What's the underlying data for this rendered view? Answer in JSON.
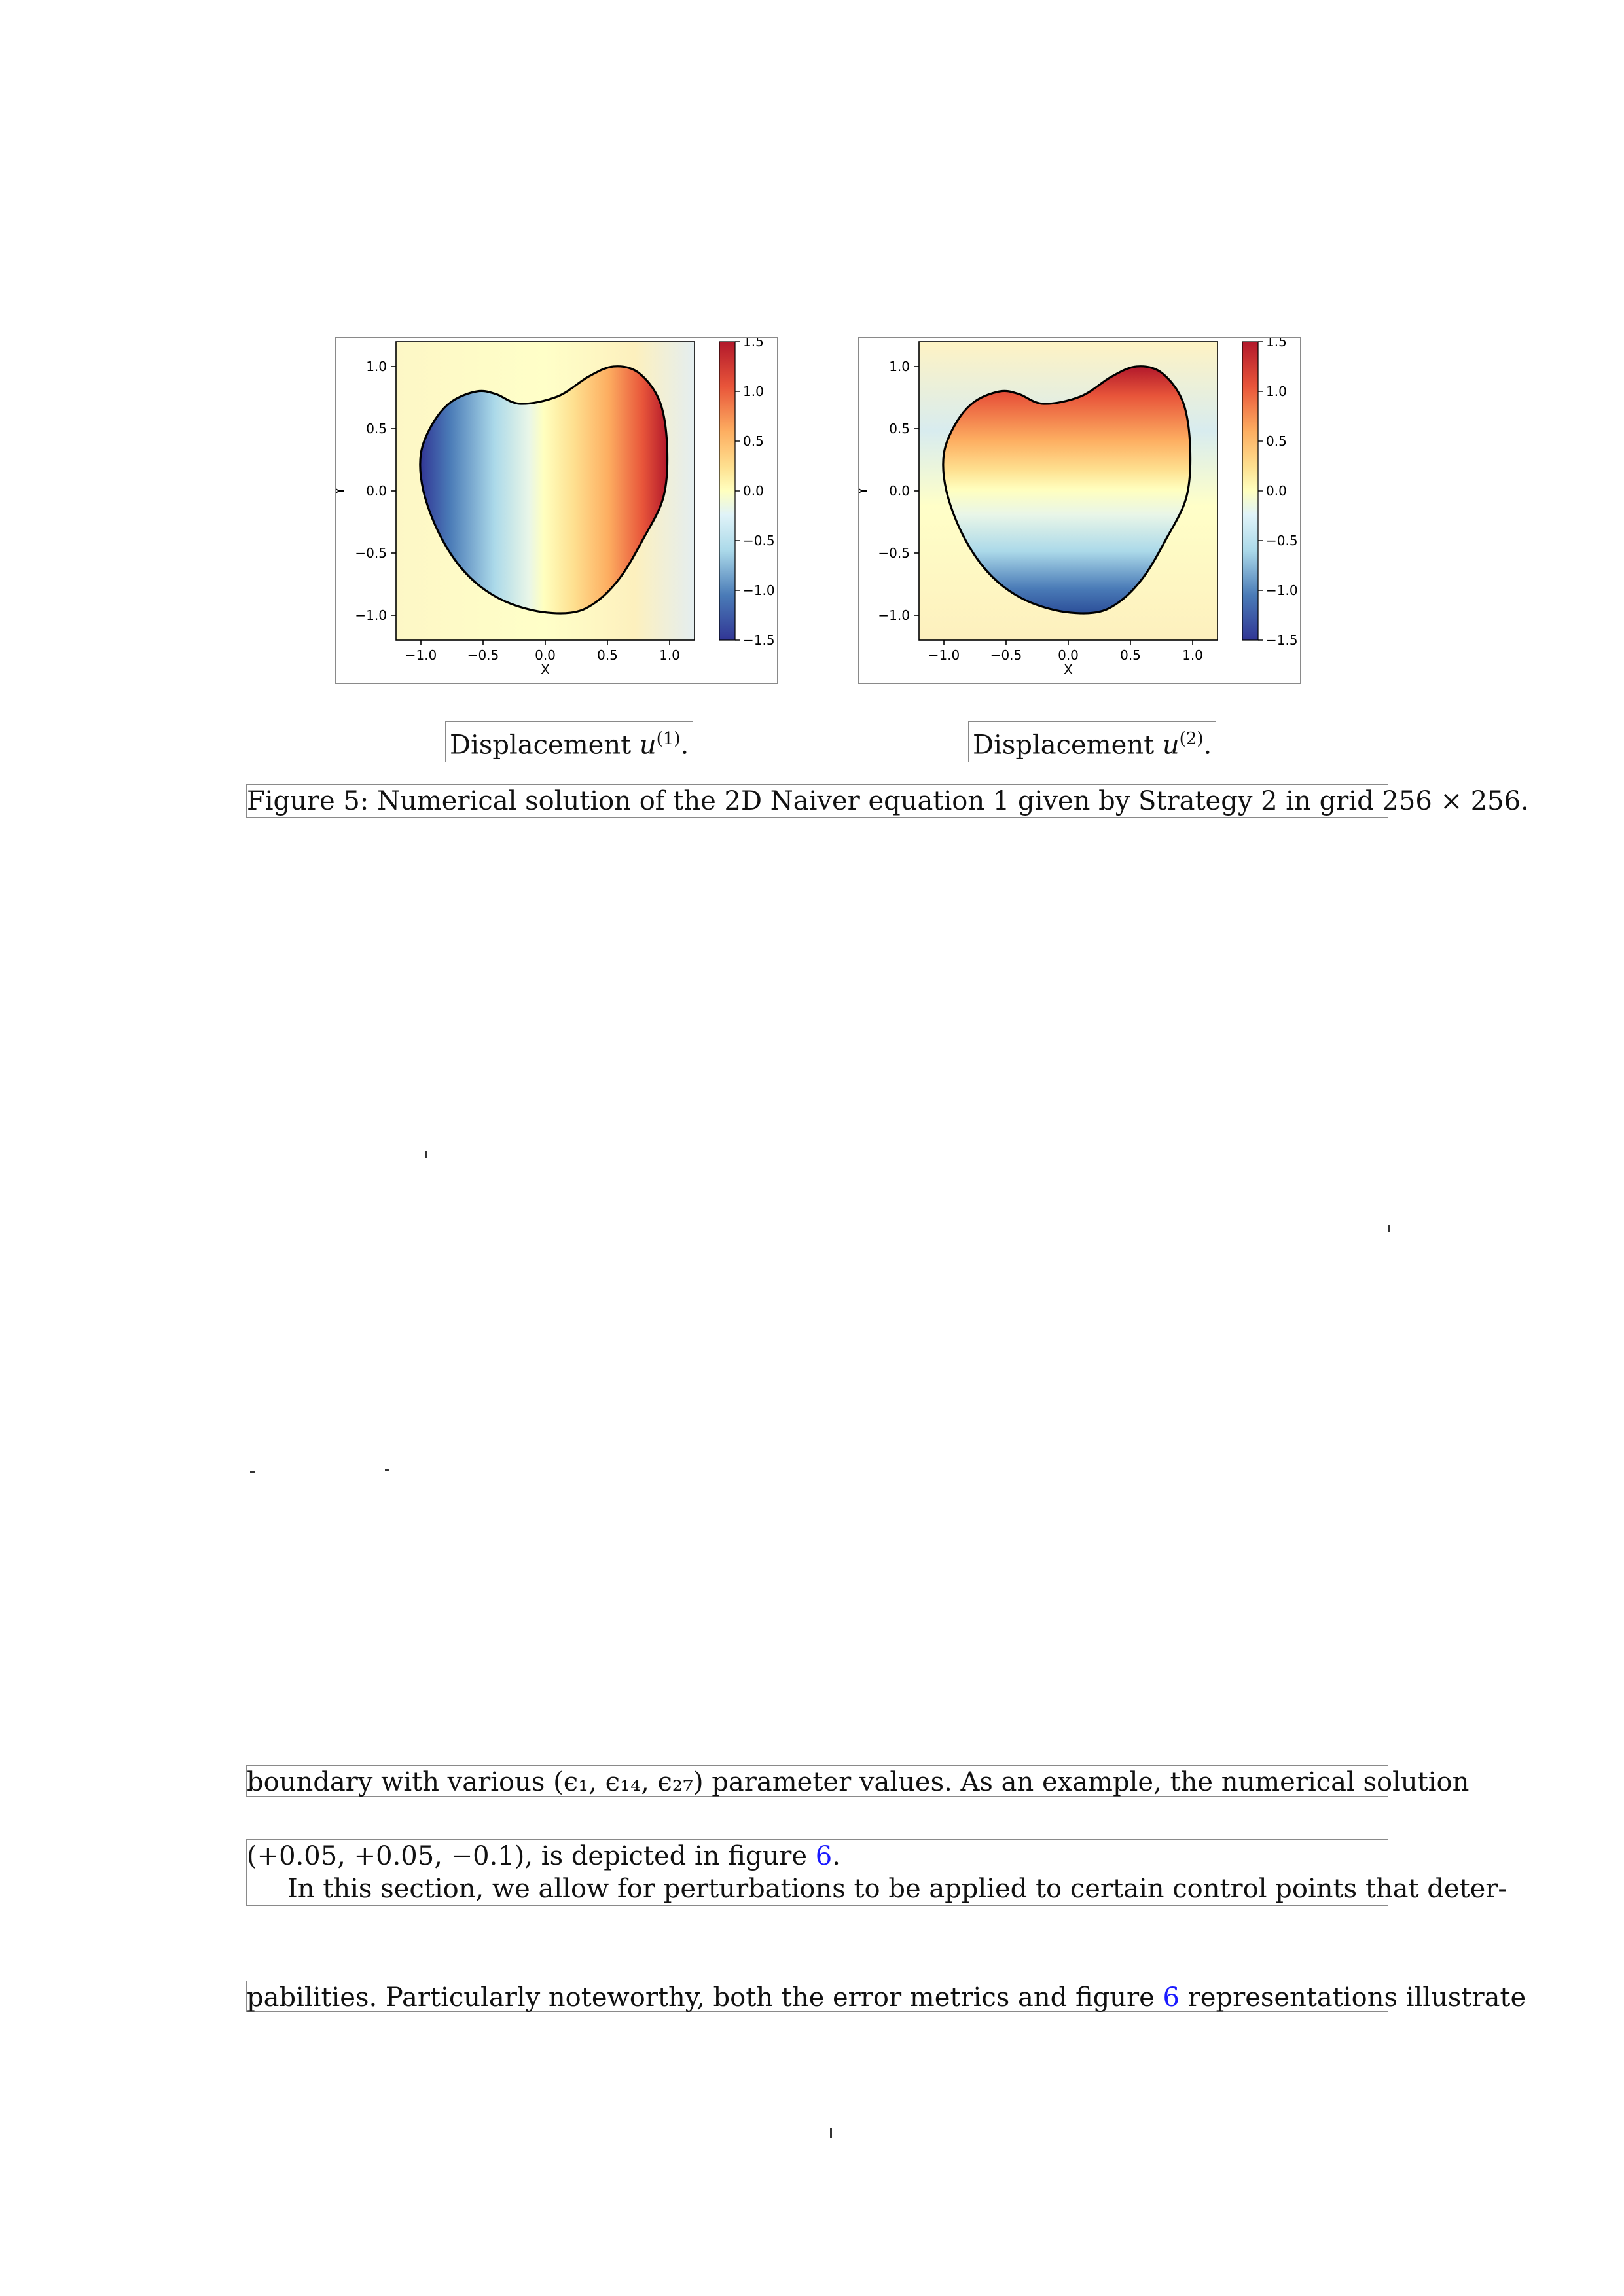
{
  "figure": {
    "panels": [
      {
        "id": "left",
        "subcaption_text": "Displacement",
        "subcaption_symbol": "u",
        "subcaption_sup": "(1)",
        "subcaption_end": "."
      },
      {
        "id": "right",
        "subcaption_text": "Displacement",
        "subcaption_symbol": "u",
        "subcaption_sup": "(2)",
        "subcaption_end": "."
      }
    ],
    "caption": "Figure 5: Numerical solution of the 2D Naiver equation 1 given by Strategy 2 in grid 256 × 256."
  },
  "chart_data": [
    {
      "type": "heatmap",
      "title": "",
      "xlabel": "X",
      "ylabel": "Y",
      "xlim": [
        -1.2,
        1.2
      ],
      "ylim": [
        -1.2,
        1.2
      ],
      "xticks": [
        "−1.0",
        "−0.5",
        "0.0",
        "0.5",
        "1.0"
      ],
      "yticks": [
        "1.0",
        "0.5",
        "0.0",
        "−0.5",
        "−1.0"
      ],
      "colorbar": {
        "range": [
          -1.5,
          1.5
        ],
        "ticks": [
          "1.5",
          "1.0",
          "0.5",
          "0.0",
          "−0.5",
          "−1.0",
          "−1.5"
        ],
        "colormap": "RdYlBu_r"
      },
      "field_pattern": "gradient along x: negative on left, positive on right"
    },
    {
      "type": "heatmap",
      "title": "",
      "xlabel": "X",
      "ylabel": "Y",
      "xlim": [
        -1.2,
        1.2
      ],
      "ylim": [
        -1.2,
        1.2
      ],
      "xticks": [
        "−1.0",
        "−0.5",
        "0.0",
        "0.5",
        "1.0"
      ],
      "yticks": [
        "1.0",
        "0.5",
        "0.0",
        "−0.5",
        "−1.0"
      ],
      "colorbar": {
        "range": [
          -1.5,
          1.5
        ],
        "ticks": [
          "1.5",
          "1.0",
          "0.5",
          "0.0",
          "−0.5",
          "−1.0",
          "−1.5"
        ],
        "colormap": "RdYlBu_r"
      },
      "field_pattern": "gradient along y: positive on top, negative on bottom"
    }
  ],
  "colors": {
    "red": "#b2182b",
    "orange": "#f4a460",
    "yellow": "#ffffbf",
    "lightblue": "#abd9e9",
    "blue": "#313695",
    "link": "#1a1aff"
  },
  "body": {
    "line1": "boundary with various (ϵ₁, ϵ₁₄, ϵ₂₇) parameter values.  As an example, the numerical solution",
    "line2_pre": "(+0.05, +0.05, −0.1), is depicted in figure ",
    "line2_ref": "6",
    "line2_post": ".",
    "line3": "In this section, we allow for perturbations to be applied to certain control points that deter-",
    "line4_pre": "pabilities. Particularly noteworthy, both the error metrics and figure ",
    "line4_ref": "6",
    "line4_post": " representations illustrate"
  }
}
